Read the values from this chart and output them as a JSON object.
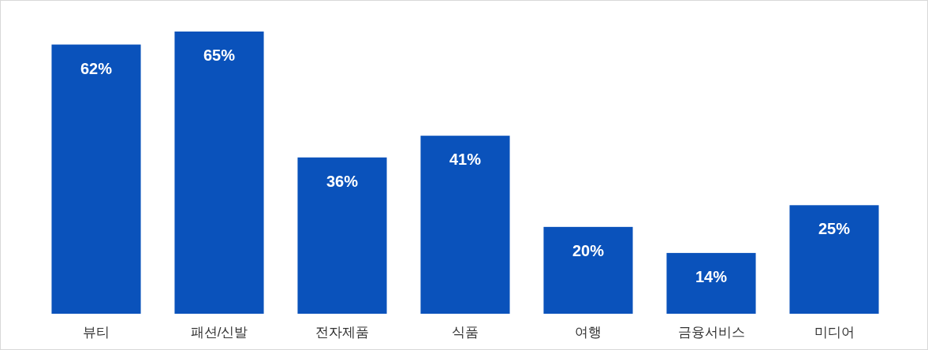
{
  "chart_data": {
    "type": "bar",
    "categories": [
      "뷰티",
      "패션/신발",
      "전자제품",
      "식품",
      "여행",
      "금융서비스",
      "미디어"
    ],
    "values": [
      62,
      65,
      36,
      41,
      20,
      14,
      25
    ],
    "value_labels": [
      "62%",
      "65%",
      "36%",
      "41%",
      "20%",
      "14%",
      "25%"
    ],
    "color": "#0a52bb"
  }
}
